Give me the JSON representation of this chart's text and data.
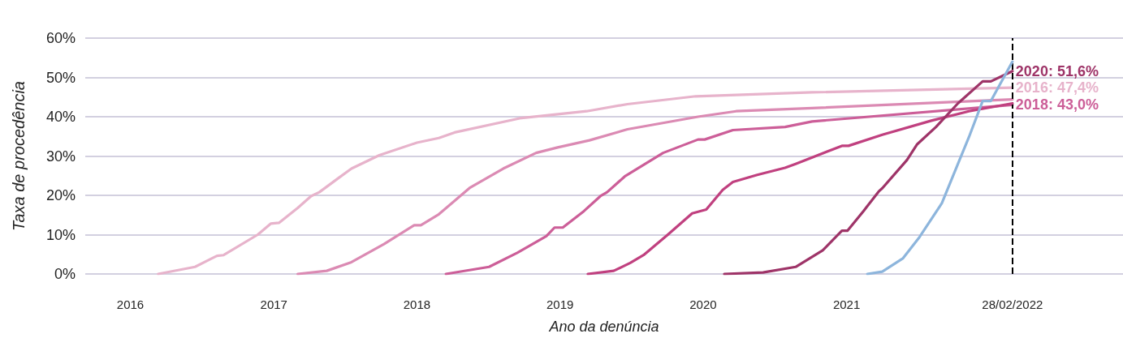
{
  "chart_data": {
    "type": "line",
    "xlabel": "Ano da denúncia",
    "ylabel": "Taxa de procedência",
    "xlim": [
      "2015-09-08",
      "2022-12-07"
    ],
    "ylim": [
      0,
      60
    ],
    "xticks": [
      "2016",
      "2017",
      "2018",
      "2019",
      "2020",
      "2021",
      {
        "value": "2022-02-28",
        "label": "28/02/2022"
      }
    ],
    "yticks": [
      {
        "value": 0,
        "label": "0%"
      },
      {
        "value": 10,
        "label": "10%"
      },
      {
        "value": 20,
        "label": "20%"
      },
      {
        "value": 30,
        "label": "30%"
      },
      {
        "value": 40,
        "label": "40%"
      },
      {
        "value": 50,
        "label": "50%"
      },
      {
        "value": 60,
        "label": "60%"
      }
    ],
    "grid": "y",
    "ref_lines": [
      {
        "axis": "x",
        "value": "2022-02-28",
        "color": "#000000",
        "line_style": "dashed"
      }
    ],
    "series": [
      {
        "color": "#e7b3cb",
        "x": [
          "2016-03-12",
          "2016-06-14",
          "2016-08-09",
          "2016-08-26",
          "2016-11-21",
          "2016-12-24",
          "2017-01-14",
          "2017-03-03",
          "2017-04-06",
          "2017-04-27",
          "2017-06-15",
          "2017-07-18",
          "2017-09-27",
          "2018-01-01",
          "2018-02-26",
          "2018-04-07",
          "2018-09-20",
          "2019-03-10",
          "2019-06-22",
          "2019-12-13",
          "2020-10-05",
          "2022-02-28"
        ],
        "values": [
          0,
          1.8,
          4.6,
          4.8,
          10,
          12.8,
          13,
          16.8,
          19.8,
          20.8,
          24.4,
          26.8,
          30.2,
          33.4,
          34.6,
          36,
          39.6,
          41.4,
          43.2,
          45.2,
          46.2,
          47.4
        ],
        "value_labels": [
          null,
          null,
          null,
          null,
          null,
          null,
          null,
          null,
          null,
          null,
          null,
          null,
          null,
          null,
          null,
          null,
          null,
          null,
          null,
          null,
          null,
          "2016: 47,4%"
        ]
      },
      {
        "color": "#db8ab3",
        "x": [
          "2017-03-03",
          "2017-05-16",
          "2017-07-18",
          "2017-10-09",
          "2017-12-25",
          "2018-01-11",
          "2018-02-26",
          "2018-05-17",
          "2018-08-09",
          "2018-11-01",
          "2018-12-26",
          "2019-03-17",
          "2019-06-22",
          "2019-12-19",
          "2020-03-25",
          "2020-10-05",
          "2022-02-28"
        ],
        "values": [
          0,
          0.8,
          3,
          7.6,
          12.4,
          12.4,
          15.2,
          22,
          26.8,
          30.8,
          32.2,
          34,
          36.8,
          40,
          41.4,
          42.2,
          44.4
        ]
      },
      {
        "color": "#cc5e98",
        "x": [
          "2018-03-16",
          "2018-07-04",
          "2018-09-14",
          "2018-11-27",
          "2018-12-18",
          "2019-01-08",
          "2019-03-03",
          "2019-04-14",
          "2019-05-01",
          "2019-06-15",
          "2019-09-21",
          "2019-12-19",
          "2020-01-05",
          "2020-03-17",
          "2020-07-28",
          "2020-10-05",
          "2022-02-28"
        ],
        "values": [
          0,
          1.8,
          5.4,
          9.6,
          11.8,
          11.8,
          16,
          19.8,
          20.8,
          24.8,
          30.8,
          34.2,
          34.2,
          36.6,
          37.4,
          38.8,
          43.0
        ],
        "value_labels": [
          null,
          null,
          null,
          null,
          null,
          null,
          null,
          null,
          null,
          null,
          null,
          null,
          null,
          null,
          null,
          null,
          "2018: 43,0%"
        ]
      },
      {
        "color": "#c0407f",
        "x": [
          "2019-03-13",
          "2019-05-18",
          "2019-06-29",
          "2019-08-02",
          "2019-10-03",
          "2019-12-04",
          "2020-01-09",
          "2020-02-20",
          "2020-03-17",
          "2020-05-18",
          "2020-07-28",
          "2020-08-24",
          "2020-12-20",
          "2021-01-06",
          "2021-04-02",
          "2021-08-05",
          "2021-11-09",
          "2022-02-28"
        ],
        "values": [
          0,
          0.8,
          2.8,
          4.8,
          10,
          15.4,
          16.4,
          21.4,
          23.4,
          25.2,
          27,
          28,
          32.6,
          32.6,
          35.4,
          39,
          41.4,
          43.4
        ]
      },
      {
        "color": "#9e3468",
        "x": [
          "2020-02-24",
          "2020-06-02",
          "2020-08-24",
          "2020-11-01",
          "2020-12-20",
          "2021-01-03",
          "2021-02-13",
          "2021-03-24",
          "2021-04-02",
          "2021-06-04",
          "2021-06-30",
          "2021-08-17",
          "2021-10-12",
          "2021-12-14",
          "2022-01-04",
          "2022-02-28"
        ],
        "values": [
          0,
          0.4,
          1.8,
          6,
          11,
          11,
          16,
          21,
          21.8,
          29,
          33,
          37.4,
          43.4,
          49,
          49,
          51.6
        ],
        "value_labels": [
          null,
          null,
          null,
          null,
          null,
          null,
          null,
          null,
          null,
          null,
          null,
          null,
          null,
          null,
          null,
          "2020: 51,6%"
        ]
      },
      {
        "color": "#8db5dc",
        "x": [
          "2021-02-23",
          "2021-04-02",
          "2021-05-25",
          "2021-07-06",
          "2021-09-01",
          "2021-10-12",
          "2021-11-09",
          "2021-12-14",
          "2022-01-04",
          "2022-02-28"
        ],
        "values": [
          0,
          0.6,
          4,
          9.4,
          18,
          28,
          34.8,
          44,
          44,
          54
        ]
      }
    ]
  }
}
